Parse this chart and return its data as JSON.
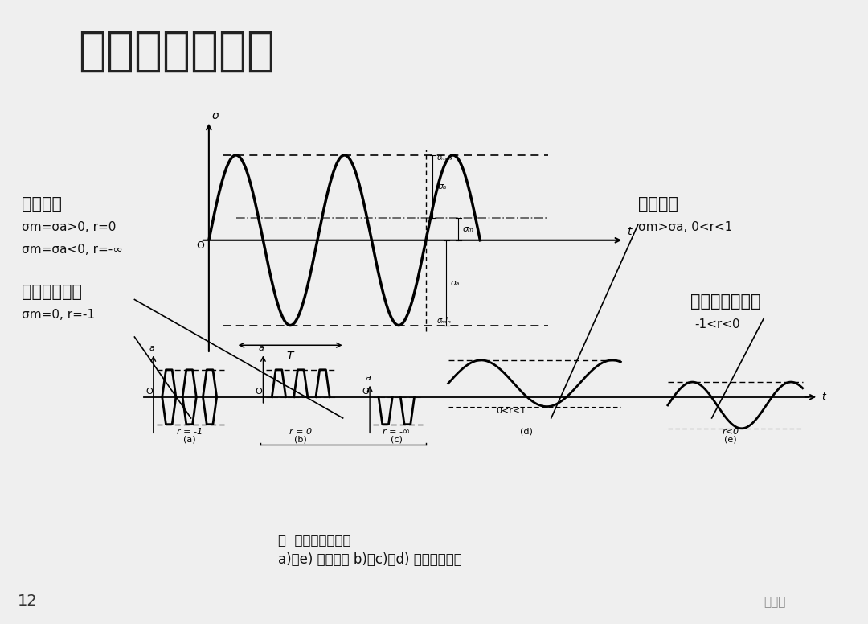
{
  "title": "常见的循环应力",
  "bg_color": "#efefef",
  "page_num": "12",
  "watermark": "材易通",
  "caption_line1": "图  循环应力的类型",
  "caption_line2": "a)、e) 交变应力 b)、c)、d) 重复循环应力",
  "label_maindong": "脉动应力",
  "label_maindong2a": "σm=σa>0, r=0",
  "label_maindong2b": "σm=σa<0, r=-∞",
  "label_sym": "对称交变应力",
  "label_sym2": "σm=0, r=-1",
  "label_wave": "波动应力",
  "label_wave2": "σm>σa, 0<r<1",
  "label_asym": "不对称交变应力",
  "label_asym2": "-1<r<0"
}
